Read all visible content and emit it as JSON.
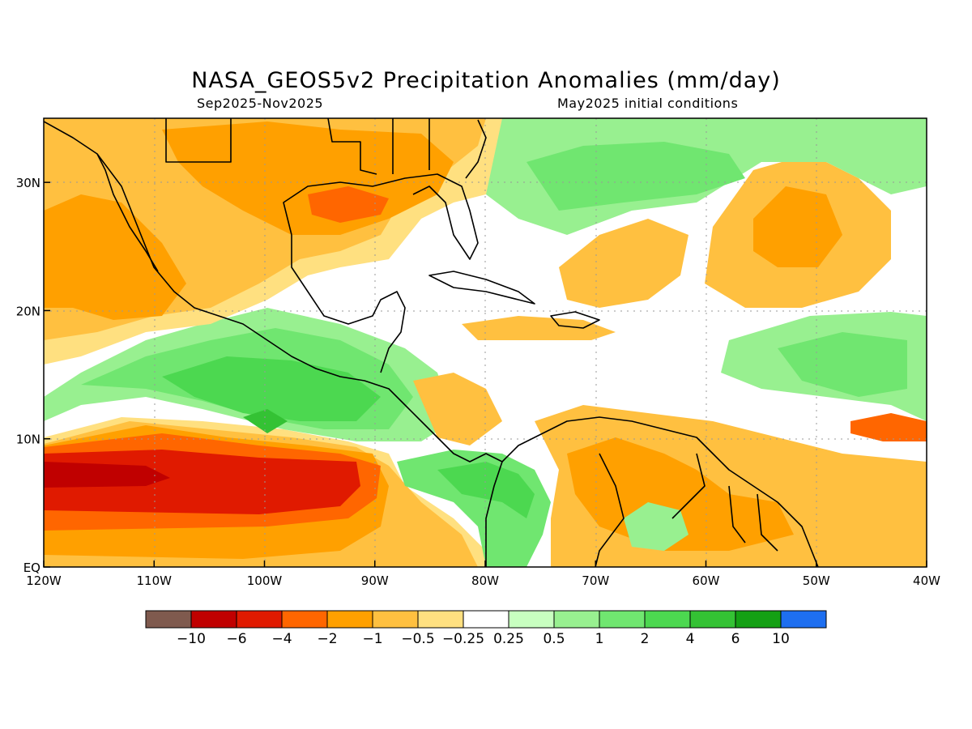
{
  "title": "NASA_GEOS5v2 Precipitation Anomalies (mm/day)",
  "period": "Sep2025-Nov2025",
  "init": "May2025 initial conditions",
  "map": {
    "lon_range": [
      -120,
      -40
    ],
    "lat_range": [
      0,
      35
    ],
    "x_ticks": [
      "120W",
      "110W",
      "100W",
      "90W",
      "80W",
      "70W",
      "60W",
      "50W",
      "40W"
    ],
    "y_ticks": [
      "EQ",
      "10N",
      "20N",
      "30N"
    ],
    "gridlines": true
  },
  "legend": {
    "labels": [
      "-10",
      "-6",
      "-4",
      "-2",
      "-1",
      "-0.5",
      "-0.25",
      "0.25",
      "0.5",
      "1",
      "2",
      "4",
      "6",
      "10"
    ],
    "colors": [
      "#7f5a4e",
      "#c00000",
      "#e01a00",
      "#ff6600",
      "#ffa000",
      "#ffc040",
      "#ffe080",
      "#ffffff",
      "#c8ffc0",
      "#98f090",
      "#70e670",
      "#4cd850",
      "#34c234",
      "#14a014",
      "#1e6ff0"
    ]
  },
  "regions": [
    {
      "name": "east-pacific-dry-band",
      "level": -6
    },
    {
      "name": "east-pacific-wet-band",
      "level": 2
    },
    {
      "name": "gulf-of-mexico-dry",
      "level": -1
    },
    {
      "name": "caribbean-neutral",
      "level": 0
    },
    {
      "name": "atlantic-wet-band",
      "level": 1
    },
    {
      "name": "northern-south-america-dry",
      "level": -1
    },
    {
      "name": "colombia-wet",
      "level": 2
    }
  ]
}
